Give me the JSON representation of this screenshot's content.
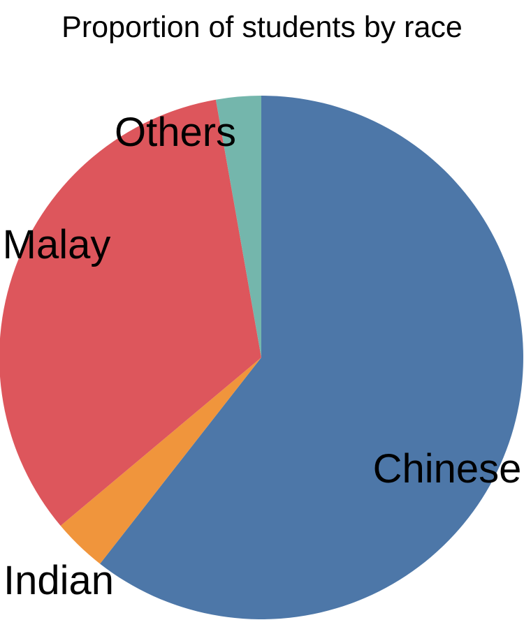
{
  "page": {
    "background_color": "#ffffff",
    "text_color": "#000000"
  },
  "chart_data": {
    "type": "pie",
    "title": "Proportion of students by race",
    "legend": "none",
    "labels_placement": "direct labels next to slices",
    "rotation": "clockwise starting at 12 o'clock",
    "unit": "percent (estimated from slice angles, no numeric labels shown)",
    "categories": [
      "Chinese",
      "Indian",
      "Malay",
      "Others"
    ],
    "values": [
      60.6,
      3.3,
      33.3,
      2.8
    ],
    "slices": [
      {
        "label": "Chinese",
        "value": 60.6,
        "start_angle": 0,
        "end_angle": 218,
        "color": "#4d77a8"
      },
      {
        "label": "Indian",
        "value": 3.3,
        "start_angle": 218,
        "end_angle": 230,
        "color": "#f0953c"
      },
      {
        "label": "Malay",
        "value": 33.3,
        "start_angle": 230,
        "end_angle": 350,
        "color": "#dd565c"
      },
      {
        "label": "Others",
        "value": 2.8,
        "start_angle": 350,
        "end_angle": 360,
        "color": "#74b6ac"
      }
    ]
  }
}
